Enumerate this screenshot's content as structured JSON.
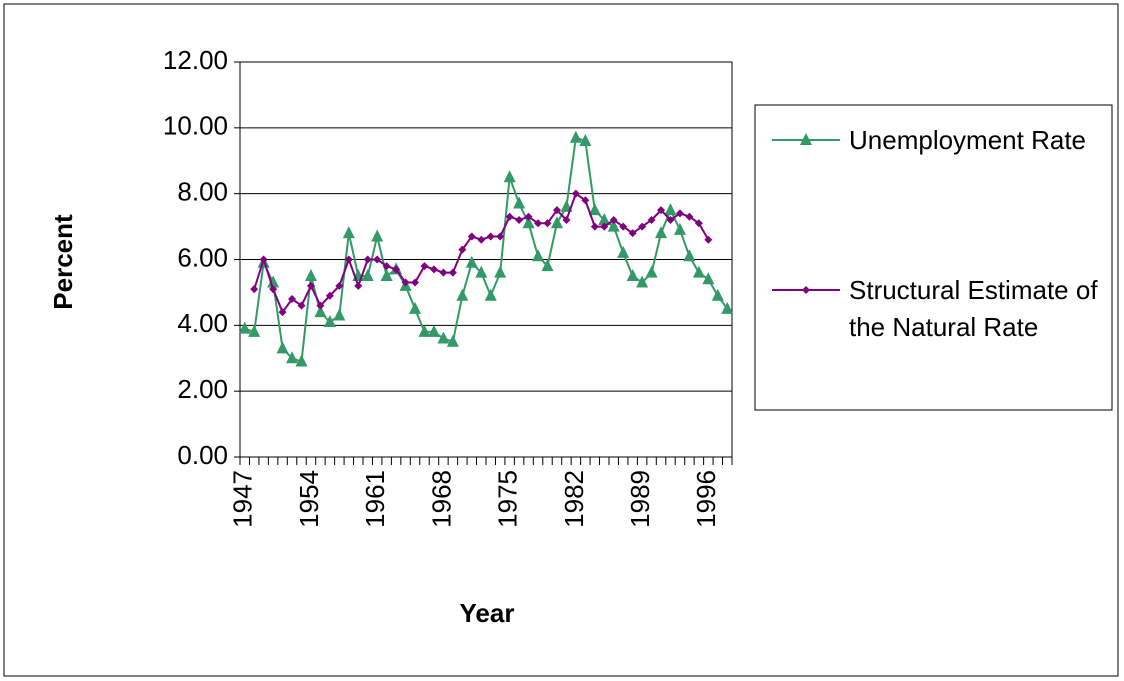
{
  "chart_data": {
    "type": "line",
    "x": [
      1947,
      1948,
      1949,
      1950,
      1951,
      1952,
      1953,
      1954,
      1955,
      1956,
      1957,
      1958,
      1959,
      1960,
      1961,
      1962,
      1963,
      1964,
      1965,
      1966,
      1967,
      1968,
      1969,
      1970,
      1971,
      1972,
      1973,
      1974,
      1975,
      1976,
      1977,
      1978,
      1979,
      1980,
      1981,
      1982,
      1983,
      1984,
      1985,
      1986,
      1987,
      1988,
      1989,
      1990,
      1991,
      1992,
      1993,
      1994,
      1995,
      1996,
      1997,
      1998
    ],
    "series": [
      {
        "name": "Unemployment Rate",
        "color": "#339966",
        "marker": "triangle",
        "values": [
          3.9,
          3.8,
          5.9,
          5.3,
          3.3,
          3.0,
          2.9,
          5.5,
          4.4,
          4.1,
          4.3,
          6.8,
          5.5,
          5.5,
          6.7,
          5.5,
          5.7,
          5.2,
          4.5,
          3.8,
          3.8,
          3.6,
          3.5,
          4.9,
          5.9,
          5.6,
          4.9,
          5.6,
          8.5,
          7.7,
          7.1,
          6.1,
          5.8,
          7.1,
          7.6,
          9.7,
          9.6,
          7.5,
          7.2,
          7.0,
          6.2,
          5.5,
          5.3,
          5.6,
          6.8,
          7.5,
          6.9,
          6.1,
          5.6,
          5.4,
          4.9,
          4.5
        ]
      },
      {
        "name": "Structural Estimate of the Natural Rate",
        "color": "#800080",
        "marker": "diamond",
        "values": [
          null,
          5.1,
          6.0,
          5.1,
          4.4,
          4.8,
          4.6,
          5.2,
          4.6,
          4.9,
          5.2,
          6.0,
          5.2,
          6.0,
          6.0,
          5.8,
          5.7,
          5.3,
          5.3,
          5.8,
          5.7,
          5.6,
          5.6,
          6.3,
          6.7,
          6.6,
          6.7,
          6.7,
          7.3,
          7.2,
          7.3,
          7.1,
          7.1,
          7.5,
          7.2,
          8.0,
          7.8,
          7.0,
          7.0,
          7.2,
          7.0,
          6.8,
          7.0,
          7.2,
          7.5,
          7.2,
          7.4,
          7.3,
          7.1,
          6.6,
          null,
          null
        ]
      }
    ],
    "xlabel": "Year",
    "ylabel": "Percent",
    "xlim": [
      1946.5,
      1998.5
    ],
    "xticks": [
      1947,
      1954,
      1961,
      1968,
      1975,
      1982,
      1989,
      1996
    ],
    "ylim": [
      0,
      12
    ],
    "yticks": [
      {
        "value": 0,
        "label": "0.00"
      },
      {
        "value": 2,
        "label": "2.00"
      },
      {
        "value": 4,
        "label": "4.00"
      },
      {
        "value": 6,
        "label": "6.00"
      },
      {
        "value": 8,
        "label": "8.00"
      },
      {
        "value": 10,
        "label": "10.00"
      },
      {
        "value": 12,
        "label": "12.00"
      }
    ],
    "grid": true,
    "legend": "right"
  }
}
